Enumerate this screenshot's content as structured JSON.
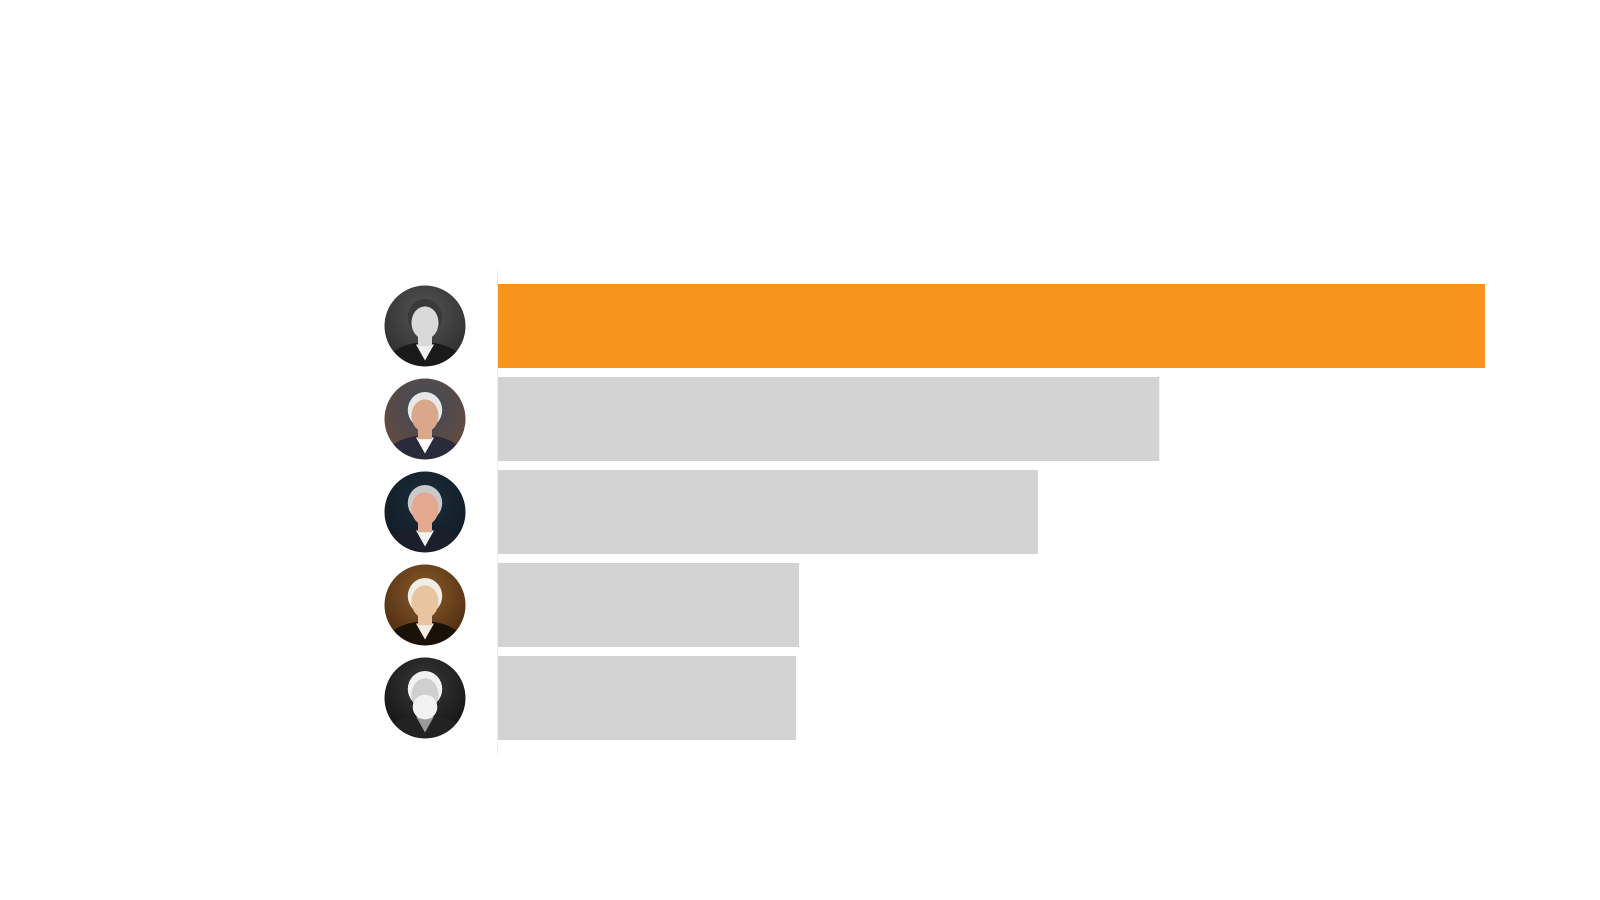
{
  "chart_data": {
    "type": "bar",
    "orientation": "horizontal",
    "title": "",
    "xlabel": "",
    "ylabel": "",
    "categories": [
      "",
      "",
      "",
      "",
      ""
    ],
    "values": [
      100,
      67,
      54.7,
      30.5,
      30.2
    ],
    "xlim": [
      0,
      100
    ],
    "grid": false,
    "legend": "none",
    "category_markers": "circular-portrait-photos",
    "highlight_index": 0,
    "colors": {
      "highlight": "#F7941E",
      "default": "#D3D3D3",
      "axis_line": "#EEEEEE",
      "background": "#FFFFFF"
    }
  }
}
